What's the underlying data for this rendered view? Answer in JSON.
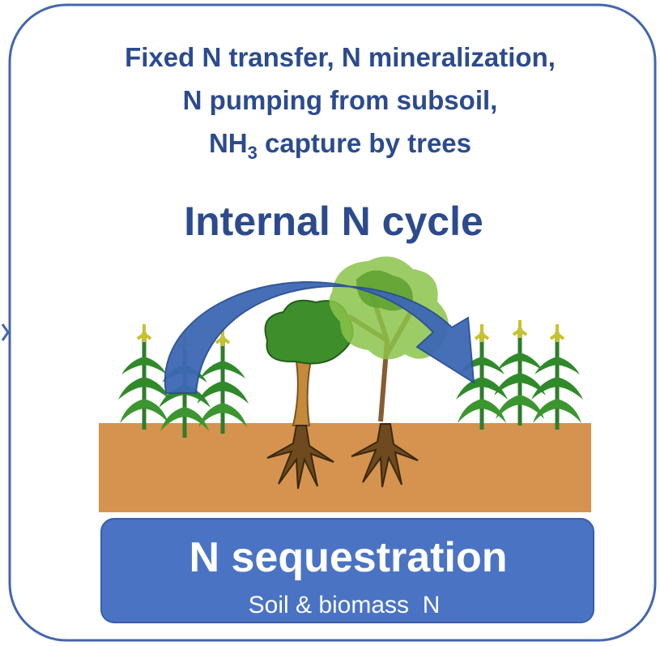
{
  "header": {
    "lines": [
      "Fixed N transfer, N mineralization,",
      "N pumping from subsoil,"
    ],
    "line3": [
      "NH",
      "3",
      " capture by trees"
    ]
  },
  "title": "Internal N cycle",
  "sequestration": {
    "title": "N sequestration",
    "subtitle": "Soil & biomass  N"
  }
}
